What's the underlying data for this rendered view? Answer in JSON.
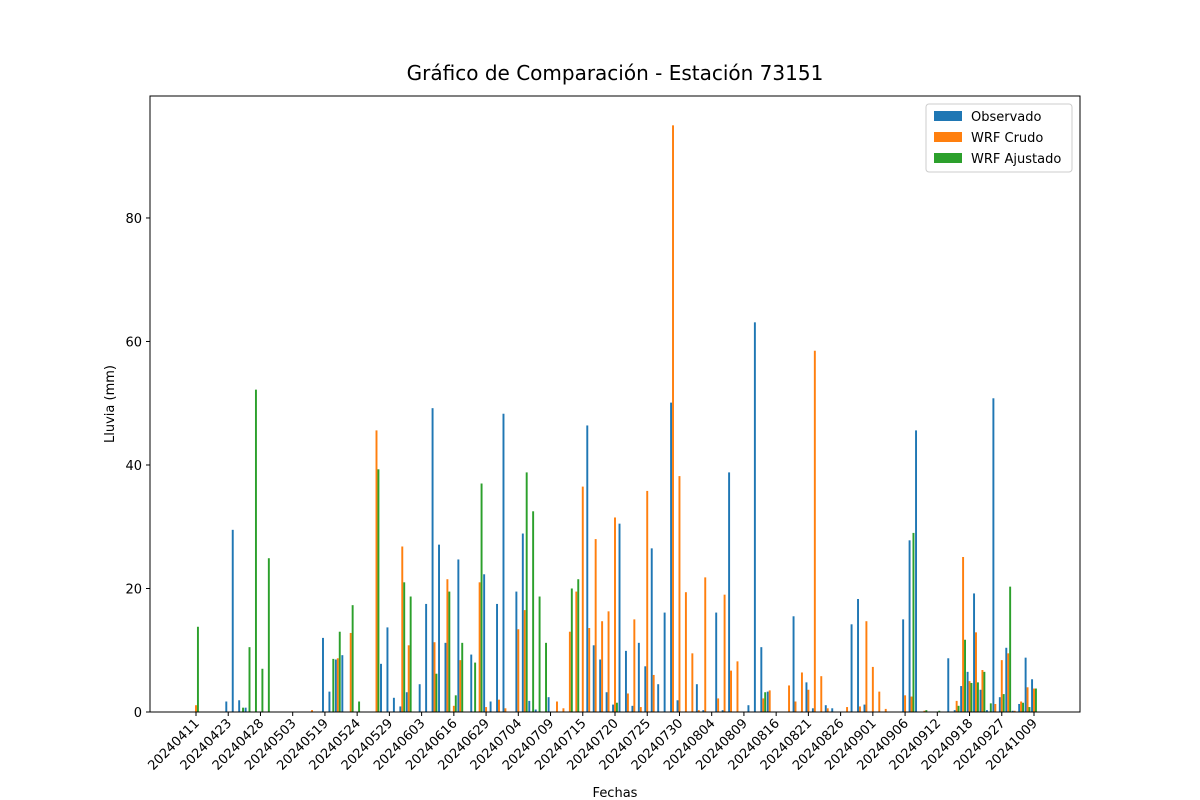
{
  "chart_data": {
    "type": "bar",
    "title": "Gráfico de Comparación - Estación 73151",
    "x_label": "Fechas",
    "y_label": "Lluvia (mm)",
    "categories": [
      "20240411",
      null,
      null,
      null,
      null,
      "20240423",
      null,
      null,
      null,
      null,
      "20240428",
      null,
      null,
      null,
      null,
      "20240503",
      null,
      null,
      null,
      null,
      "20240519",
      null,
      null,
      null,
      null,
      "20240524",
      null,
      null,
      null,
      null,
      "20240529",
      null,
      null,
      null,
      null,
      "20240603",
      null,
      null,
      null,
      null,
      "20240616",
      null,
      null,
      null,
      null,
      "20240629",
      null,
      null,
      null,
      null,
      "20240704",
      null,
      null,
      null,
      null,
      "20240709",
      null,
      null,
      null,
      null,
      "20240715",
      null,
      null,
      null,
      null,
      "20240720",
      null,
      null,
      null,
      null,
      "20240725",
      null,
      null,
      null,
      null,
      "20240730",
      null,
      null,
      null,
      null,
      "20240804",
      null,
      null,
      null,
      null,
      "20240809",
      null,
      null,
      null,
      null,
      "20240816",
      null,
      null,
      null,
      null,
      "20240821",
      null,
      null,
      null,
      null,
      "20240826",
      null,
      null,
      null,
      null,
      "20240901",
      null,
      null,
      null,
      null,
      "20240906",
      null,
      null,
      null,
      null,
      "20240912",
      null,
      null,
      null,
      null,
      "20240918",
      null,
      null,
      null,
      null,
      "20240927",
      null,
      null,
      null,
      null,
      "20241009"
    ],
    "series": [
      {
        "name": "Observado",
        "color": "#1f77b4",
        "values": [
          0,
          0,
          0,
          0,
          0,
          1.7,
          29.5,
          1.9,
          0.7,
          0,
          0,
          0,
          0,
          0,
          0,
          0,
          0,
          0,
          0,
          0,
          12,
          3.3,
          8.5,
          9.2,
          0,
          0,
          0,
          0,
          0,
          7.8,
          13.7,
          2.3,
          0.9,
          3.2,
          0,
          4.5,
          17.5,
          49.2,
          27.1,
          11.2,
          0,
          24.7,
          0,
          9.3,
          0,
          22.3,
          1.7,
          17.5,
          48.3,
          0,
          19.5,
          28.9,
          1.8,
          0.4,
          0,
          2.4,
          0,
          0,
          0,
          0,
          0,
          46.4,
          10.8,
          8.5,
          3.2,
          1.2,
          30.5,
          9.9,
          1,
          11.2,
          7.4,
          26.5,
          4.5,
          16.1,
          50.1,
          1.9,
          0,
          0,
          4.5,
          0.3,
          0,
          16.1,
          0.3,
          38.8,
          0,
          0,
          1.1,
          63.1,
          10.5,
          3.3,
          0,
          0,
          0,
          15.5,
          0,
          4.8,
          0.6,
          0,
          1.1,
          0.6,
          0,
          0,
          14.2,
          18.3,
          1.2,
          0,
          0,
          0,
          0,
          0,
          15,
          27.8,
          45.6,
          0,
          0,
          0,
          0,
          8.7,
          0.3,
          4.2,
          6.5,
          19.2,
          3.6,
          0.3,
          50.8,
          2.4,
          10.4,
          0.2,
          1.3,
          8.8,
          5.3
        ]
      },
      {
        "name": "WRF Crudo",
        "color": "#ff7f0e",
        "values": [
          1.1,
          0,
          0,
          0,
          0,
          0,
          0,
          0,
          0,
          0,
          0,
          0,
          0,
          0,
          0,
          0,
          0,
          0,
          0.3,
          0,
          0,
          0,
          8.7,
          0,
          12.8,
          0,
          0,
          0,
          45.6,
          0,
          0,
          0,
          26.8,
          10.8,
          0,
          0,
          0,
          11.3,
          0,
          21.5,
          1,
          8.4,
          0,
          0,
          21,
          0.8,
          0,
          2,
          0.6,
          0,
          13.4,
          16.5,
          0,
          0,
          0,
          0,
          1.7,
          0.6,
          13,
          19.5,
          36.5,
          13.6,
          28,
          14.7,
          16.3,
          31.5,
          0,
          3,
          15,
          0.8,
          35.8,
          6,
          0,
          0,
          95,
          38.2,
          19.4,
          9.5,
          0.3,
          21.8,
          0,
          2.2,
          19,
          6.7,
          8.2,
          0,
          0,
          0,
          2.2,
          3.5,
          0,
          0,
          4.3,
          1.7,
          6.4,
          3.6,
          58.5,
          5.8,
          0.6,
          0,
          0,
          0.8,
          0,
          0.9,
          14.7,
          7.3,
          3.3,
          0.5,
          0,
          0,
          2.7,
          2.5,
          0,
          0.2,
          0,
          0,
          0,
          0,
          1.8,
          25.1,
          5,
          12.9,
          6.8,
          0,
          1.3,
          8.4,
          9.5,
          0.2,
          1.7,
          4,
          3.8
        ]
      },
      {
        "name": "WRF Ajustado",
        "color": "#2ca02c",
        "values": [
          13.8,
          0,
          0,
          0,
          0,
          0,
          0,
          0.7,
          10.5,
          52.2,
          7,
          24.9,
          0,
          0,
          0,
          0,
          0,
          0,
          0,
          0,
          0,
          8.6,
          13,
          0,
          17.3,
          1.7,
          0,
          0,
          39.3,
          0,
          0,
          0,
          21,
          18.7,
          0,
          0,
          0,
          6.2,
          0,
          19.5,
          2.7,
          11.2,
          0,
          8,
          37,
          0,
          0,
          0,
          0,
          0,
          0,
          38.8,
          32.5,
          18.7,
          11.2,
          0,
          0,
          0,
          20,
          21.5,
          0,
          0,
          0,
          0,
          0,
          1.5,
          0,
          0,
          0,
          0,
          0,
          0,
          0,
          0,
          0,
          0,
          0,
          0,
          0,
          0,
          0,
          0,
          0,
          0,
          0,
          0,
          0,
          0,
          3.2,
          0,
          0,
          0,
          0,
          0,
          0,
          0,
          0,
          0,
          0,
          0,
          0,
          0,
          0,
          0,
          0,
          0,
          0,
          0,
          0,
          0,
          0,
          29,
          0,
          0.3,
          0,
          0.2,
          0,
          0,
          1,
          11.7,
          4.7,
          4.8,
          6.5,
          1.4,
          0,
          2.9,
          20.3,
          0,
          1.5,
          0.8,
          3.8
        ]
      }
    ],
    "ylim": [
      0,
      99.75
    ],
    "yticks": [
      0,
      20,
      40,
      60,
      80
    ],
    "grid": false,
    "legend": "upper right"
  }
}
